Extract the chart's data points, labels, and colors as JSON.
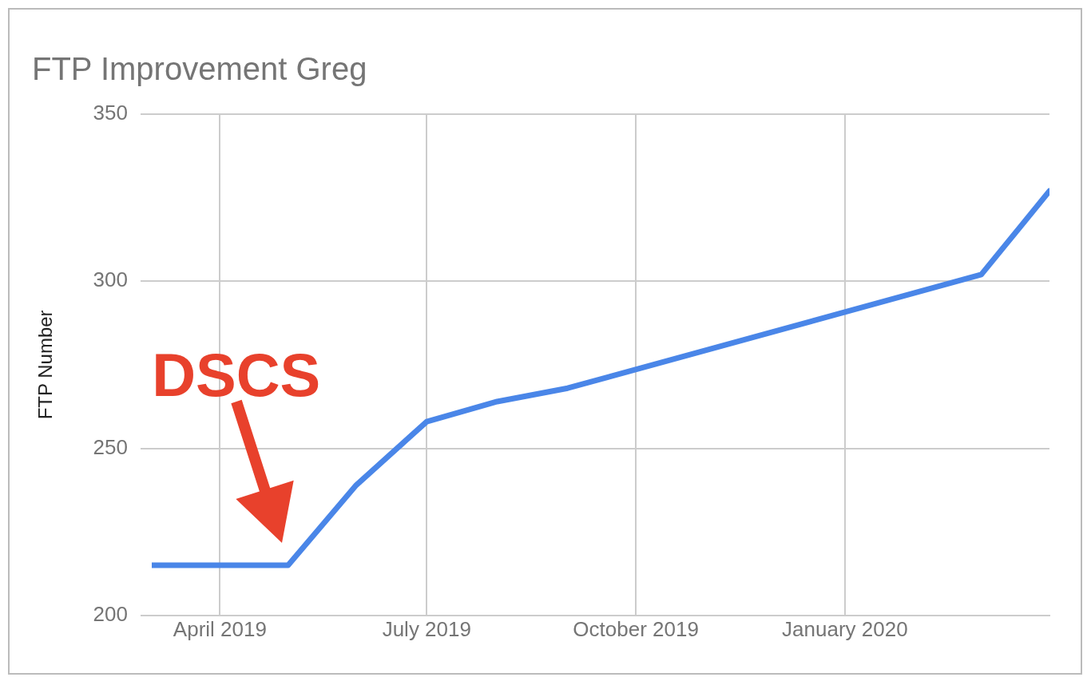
{
  "chart_data": {
    "type": "line",
    "title": "FTP Improvement Greg",
    "ylabel": "FTP Number",
    "x": [
      "2019-03-02",
      "2019-05-01",
      "2019-05-31",
      "2019-07-01",
      "2019-08-01",
      "2019-09-01",
      "2020-03-01",
      "2020-03-31"
    ],
    "series": [
      {
        "color": "#4a86e8",
        "values": [
          215,
          215,
          239,
          258,
          264,
          268,
          302,
          327
        ]
      }
    ],
    "xlim": [
      "2019-03-02",
      "2020-03-31"
    ],
    "xticks": [
      {
        "value": "2019-04-01",
        "label": "April 2019"
      },
      {
        "value": "2019-07-01",
        "label": "July 2019"
      },
      {
        "value": "2019-10-01",
        "label": "October 2019"
      },
      {
        "value": "2020-01-01",
        "label": "January 2020"
      }
    ],
    "ylim": [
      200,
      350
    ],
    "yticks": [
      200,
      250,
      300,
      350
    ],
    "grid": true,
    "legend": false,
    "marker": "none",
    "line_style": "solid",
    "annotations": [
      {
        "text": "DSCS",
        "x": "2019-05-01",
        "y": 215
      }
    ]
  }
}
